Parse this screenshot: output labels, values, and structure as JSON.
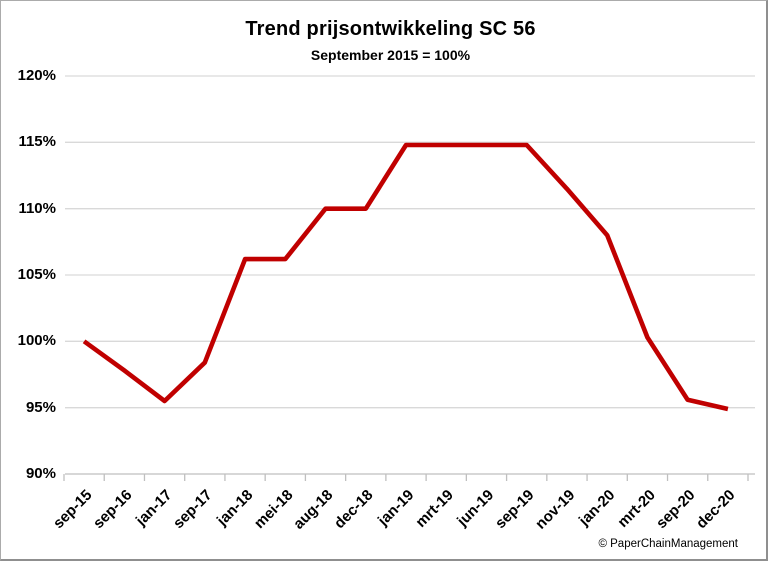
{
  "footer": {
    "copyright": "© PaperChainManagement"
  },
  "chart_data": {
    "type": "line",
    "title": "Trend prijsontwikkeling SC 56",
    "subtitle": "September 2015 = 100%",
    "categories": [
      "sep-15",
      "sep-16",
      "jan-17",
      "sep-17",
      "jan-18",
      "mei-18",
      "aug-18",
      "dec-18",
      "jan-19",
      "mrt-19",
      "jun-19",
      "sep-19",
      "nov-19",
      "jan-20",
      "mrt-20",
      "sep-20",
      "dec-20"
    ],
    "values": [
      100,
      97.8,
      95.5,
      98.4,
      106.2,
      106.2,
      110,
      110,
      114.8,
      114.8,
      114.8,
      114.8,
      111.5,
      108,
      100.3,
      95.6,
      94.9
    ],
    "ylim": [
      90,
      120
    ],
    "yticks": [
      90,
      95,
      100,
      105,
      110,
      115,
      120
    ],
    "ytick_labels": [
      "90%",
      "95%",
      "100%",
      "105%",
      "110%",
      "115%",
      "120%"
    ],
    "xlabel": "",
    "ylabel": "",
    "grid": "horizontal",
    "legend": "none",
    "colors": {
      "line": "#C00000",
      "grid": "#D9D9D9",
      "axis": "#BFBFBF",
      "text": "#000000"
    }
  }
}
